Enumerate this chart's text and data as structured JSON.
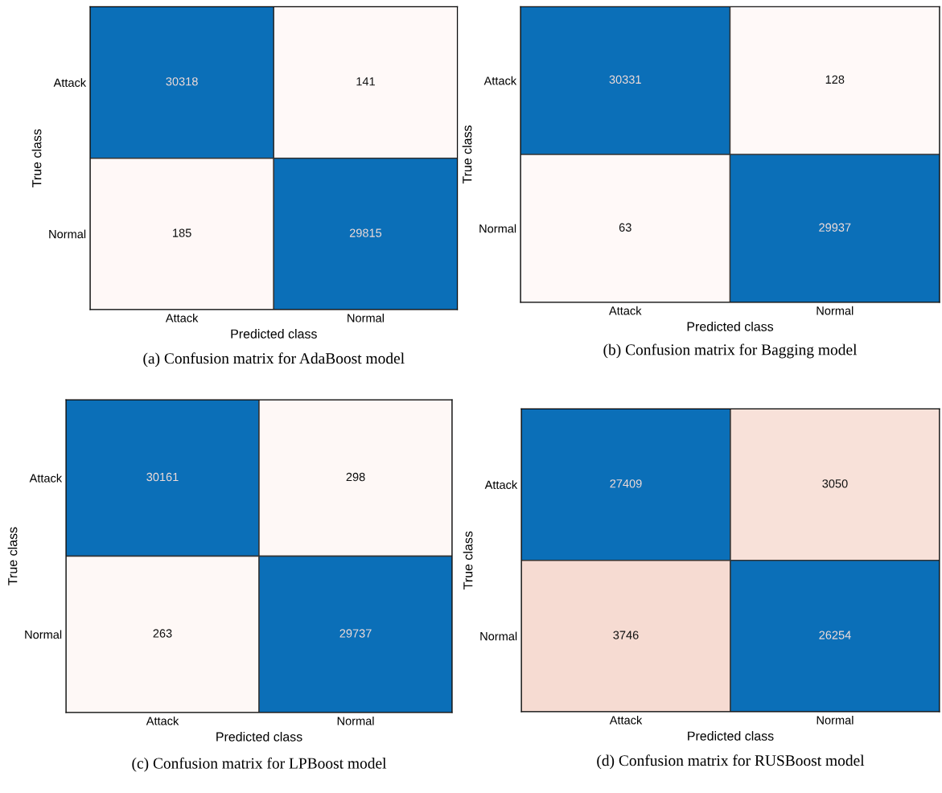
{
  "chart_data": [
    {
      "type": "heatmap",
      "title": "(a) Confusion matrix for AdaBoost model",
      "xlabel": "Predicted class",
      "ylabel": "True class",
      "categories": [
        "Attack",
        "Normal"
      ],
      "y_categories": [
        "Attack",
        "Normal"
      ],
      "cells": [
        [
          30318,
          141
        ],
        [
          185,
          29815
        ]
      ],
      "data_labels": true
    },
    {
      "type": "heatmap",
      "title": "(b) Confusion matrix for Bagging model",
      "xlabel": "Predicted class",
      "ylabel": "True class",
      "categories": [
        "Attack",
        "Normal"
      ],
      "y_categories": [
        "Attack",
        "Normal"
      ],
      "cells": [
        [
          30331,
          128
        ],
        [
          63,
          29937
        ]
      ],
      "data_labels": true
    },
    {
      "type": "heatmap",
      "title": "(c) Confusion matrix for LPBoost model",
      "xlabel": "Predicted class",
      "ylabel": "True class",
      "categories": [
        "Attack",
        "Normal"
      ],
      "y_categories": [
        "Attack",
        "Normal"
      ],
      "cells": [
        [
          30161,
          298
        ],
        [
          263,
          29737
        ]
      ],
      "data_labels": true
    },
    {
      "type": "heatmap",
      "title": "(d) Confusion matrix for RUSBoost model",
      "xlabel": "Predicted class",
      "ylabel": "True class",
      "categories": [
        "Attack",
        "Normal"
      ],
      "y_categories": [
        "Attack",
        "Normal"
      ],
      "cells": [
        [
          27409,
          3050
        ],
        [
          3746,
          26254
        ]
      ],
      "data_labels": true
    }
  ]
}
